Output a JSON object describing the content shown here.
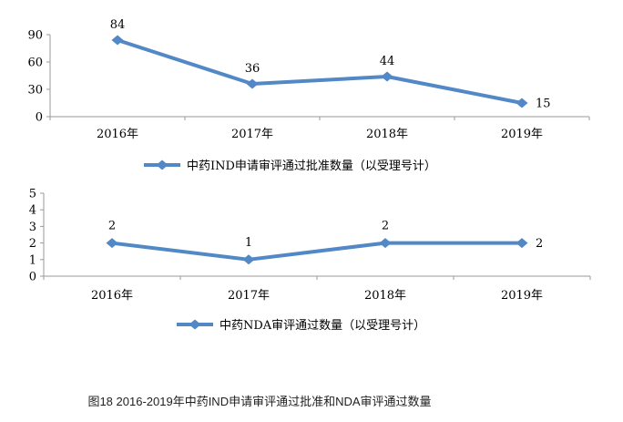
{
  "page": {
    "caption": "图18 2016-2019年中药IND申请审评通过批准和NDA审评通过数量"
  },
  "colors": {
    "series": "#5288c6",
    "axis": "#9a9a9a",
    "text": "#000000"
  },
  "chart_data": [
    {
      "type": "line",
      "title": "",
      "categories": [
        "2016年",
        "2017年",
        "2018年",
        "2019年"
      ],
      "series": [
        {
          "name": "中药IND申请审评通过批准数量（以受理号计）",
          "values": [
            84,
            36,
            44,
            15
          ]
        }
      ],
      "ylim": [
        0,
        90
      ],
      "yticks": [
        0,
        30,
        60,
        90
      ],
      "grid": false,
      "marker": "diamond",
      "data_labels": [
        84,
        36,
        44,
        15
      ],
      "label_placement": [
        "above",
        "above",
        "above",
        "right"
      ],
      "legend_position": "bottom"
    },
    {
      "type": "line",
      "title": "",
      "categories": [
        "2016年",
        "2017年",
        "2018年",
        "2019年"
      ],
      "series": [
        {
          "name": "中药NDA审评通过数量（以受理号计）",
          "values": [
            2,
            1,
            2,
            2
          ]
        }
      ],
      "ylim": [
        0,
        5
      ],
      "yticks": [
        0,
        1,
        2,
        3,
        4,
        5
      ],
      "grid": false,
      "marker": "diamond",
      "data_labels": [
        2,
        1,
        2,
        2
      ],
      "label_placement": [
        "above",
        "above",
        "above",
        "right"
      ],
      "legend_position": "bottom"
    }
  ]
}
